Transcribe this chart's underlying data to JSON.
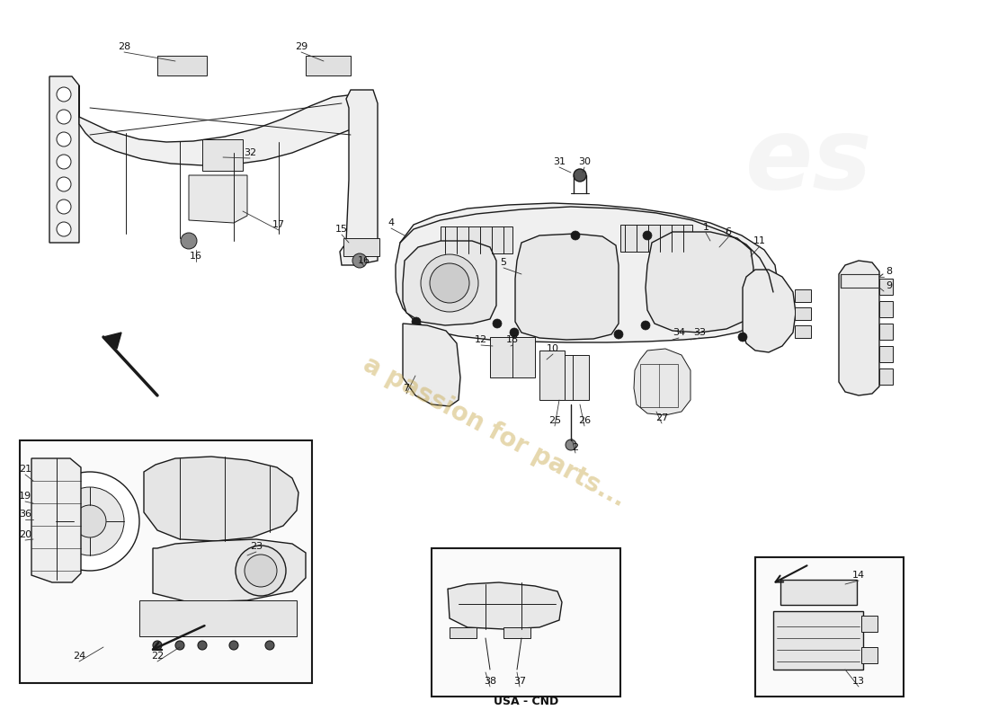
{
  "bg_color": "#ffffff",
  "line_color": "#1a1a1a",
  "watermark_text": "a passion for parts...",
  "watermark_color": "#c8a84b",
  "watermark_alpha": 0.45,
  "usa_cnd_label": "USA - CND",
  "figsize": [
    11.0,
    8.0
  ],
  "dpi": 100
}
